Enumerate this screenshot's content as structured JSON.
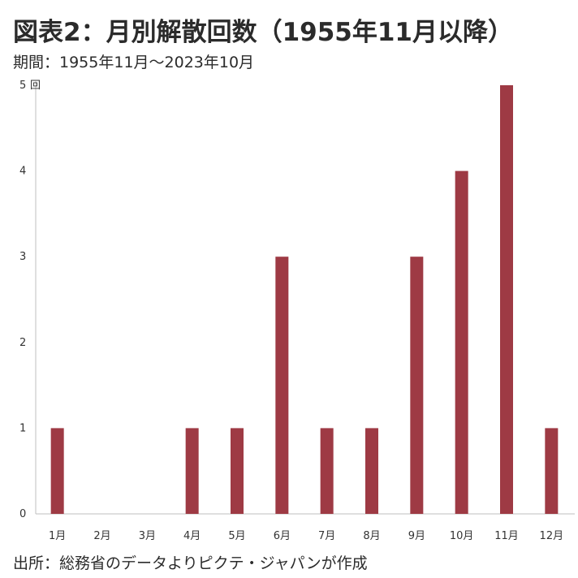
{
  "title": "図表2：月別解散回数（1955年11月以降）",
  "subtitle": "期間：1955年11月～2023年10月",
  "source": "出所：総務省のデータよりピクテ・ジャパンが作成",
  "colors": {
    "bar": "#9e3a44",
    "axis": "#bfbfbf"
  },
  "chart_data": {
    "type": "bar",
    "categories": [
      "1月",
      "2月",
      "3月",
      "4月",
      "5月",
      "6月",
      "7月",
      "8月",
      "9月",
      "10月",
      "11月",
      "12月"
    ],
    "values": [
      1,
      0,
      0,
      1,
      1,
      3,
      1,
      1,
      3,
      4,
      5,
      1
    ],
    "ylabel": "回",
    "ylim": [
      0,
      5
    ],
    "yticks": [
      "0",
      "1",
      "2",
      "3",
      "4",
      "5"
    ],
    "grid": false,
    "legend": "none"
  }
}
